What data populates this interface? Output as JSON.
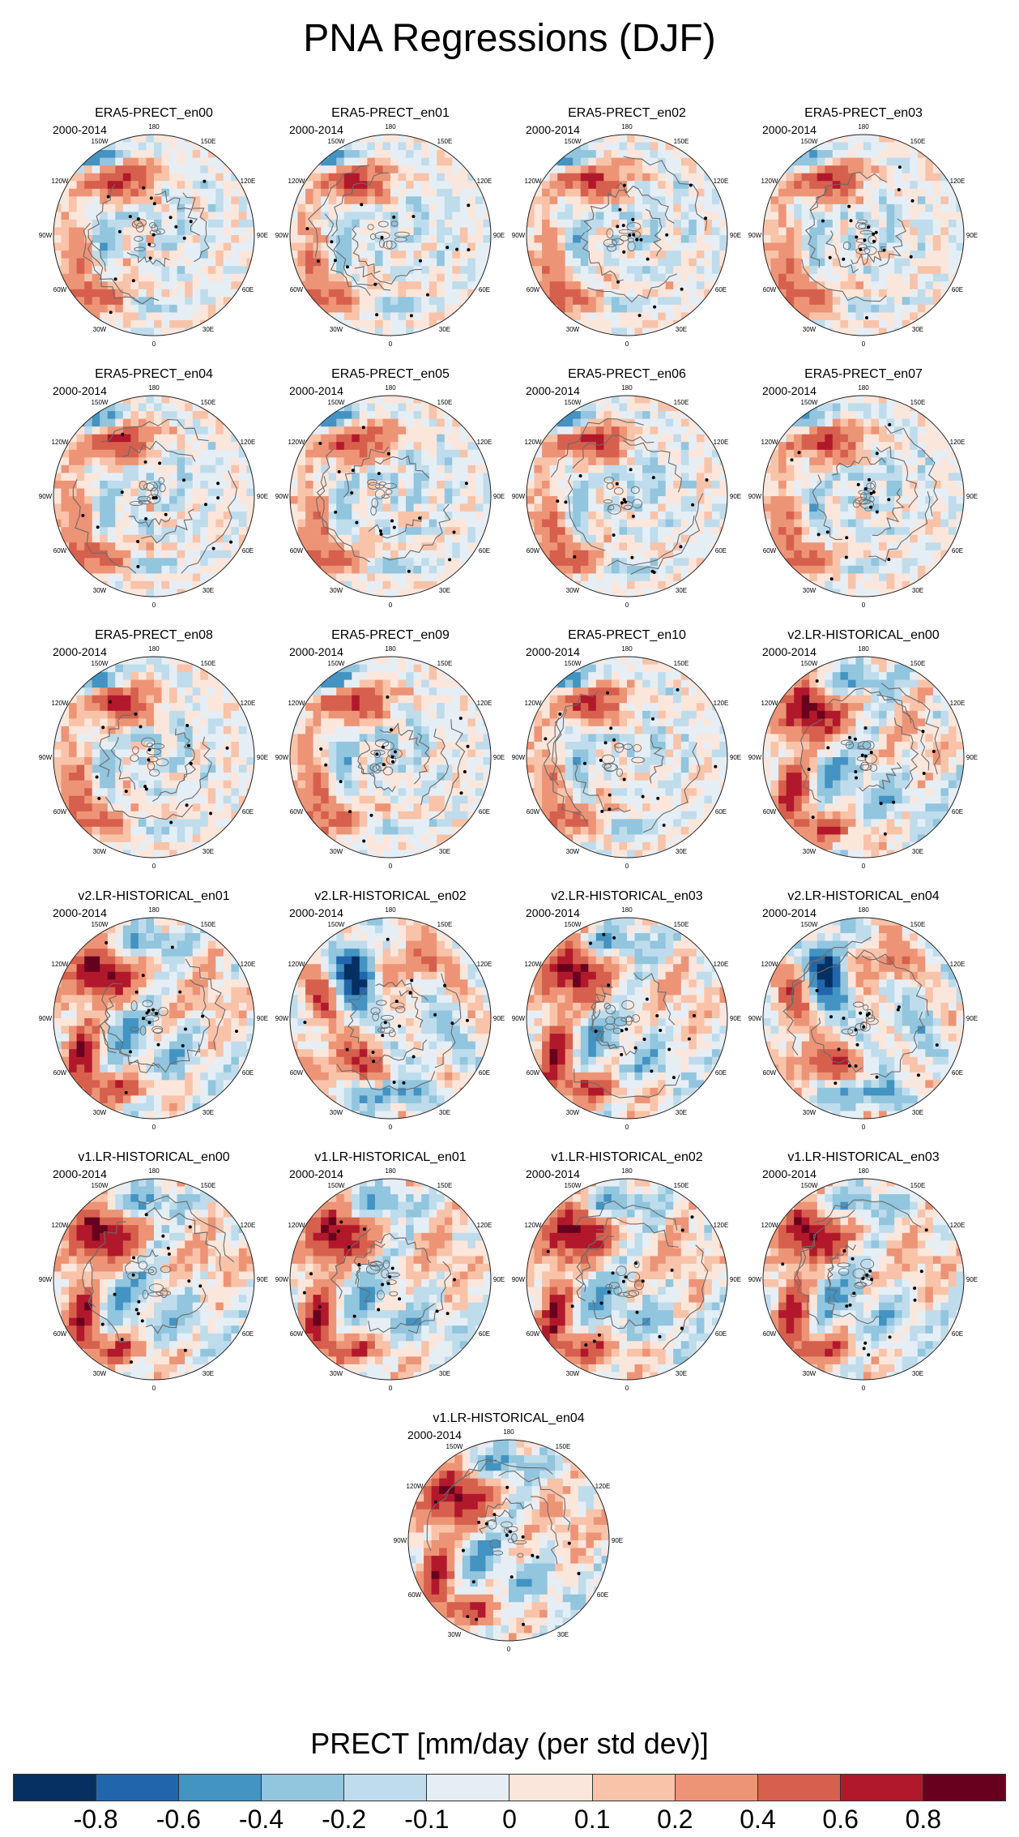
{
  "title": "PNA Regressions (DJF)",
  "period": "2000-2014",
  "lon_labels": [
    "180",
    "150E",
    "120E",
    "90E",
    "60E",
    "30E",
    "0",
    "30W",
    "60W",
    "90W",
    "120W",
    "150W"
  ],
  "colorbar": {
    "title": "PRECT [mm/day (per std dev)]",
    "colors": [
      "#053061",
      "#2166ac",
      "#4393c3",
      "#92c5de",
      "#bfdcec",
      "#e6eef5",
      "#fbe6dc",
      "#f8c3a9",
      "#ed9476",
      "#d6604d",
      "#b2182b",
      "#67001f"
    ],
    "tick_labels": [
      "-0.8",
      "-0.6",
      "-0.4",
      "-0.2",
      "-0.1",
      "0",
      "0.1",
      "0.2",
      "0.4",
      "0.6",
      "0.8"
    ]
  },
  "chart_data": {
    "type": "heatmap",
    "projection": "north polar stereographic",
    "variable": "PRECT",
    "units": "mm/day (per std dev)",
    "levels": [
      -0.8,
      -0.6,
      -0.4,
      -0.2,
      -0.1,
      0,
      0.1,
      0.2,
      0.4,
      0.6,
      0.8
    ],
    "panels": [
      {
        "title": "ERA5-PRECT_en00",
        "period": "2000-2014",
        "pattern": "era"
      },
      {
        "title": "ERA5-PRECT_en01",
        "period": "2000-2014",
        "pattern": "era"
      },
      {
        "title": "ERA5-PRECT_en02",
        "period": "2000-2014",
        "pattern": "era"
      },
      {
        "title": "ERA5-PRECT_en03",
        "period": "2000-2014",
        "pattern": "era"
      },
      {
        "title": "ERA5-PRECT_en04",
        "period": "2000-2014",
        "pattern": "era"
      },
      {
        "title": "ERA5-PRECT_en05",
        "period": "2000-2014",
        "pattern": "era"
      },
      {
        "title": "ERA5-PRECT_en06",
        "period": "2000-2014",
        "pattern": "era"
      },
      {
        "title": "ERA5-PRECT_en07",
        "period": "2000-2014",
        "pattern": "era"
      },
      {
        "title": "ERA5-PRECT_en08",
        "period": "2000-2014",
        "pattern": "era"
      },
      {
        "title": "ERA5-PRECT_en09",
        "period": "2000-2014",
        "pattern": "era"
      },
      {
        "title": "ERA5-PRECT_en10",
        "period": "2000-2014",
        "pattern": "era"
      },
      {
        "title": "v2.LR-HISTORICAL_en00",
        "period": "2000-2014",
        "pattern": "model"
      },
      {
        "title": "v2.LR-HISTORICAL_en01",
        "period": "2000-2014",
        "pattern": "model"
      },
      {
        "title": "v2.LR-HISTORICAL_en02",
        "period": "2000-2014",
        "pattern": "model-b"
      },
      {
        "title": "v2.LR-HISTORICAL_en03",
        "period": "2000-2014",
        "pattern": "model"
      },
      {
        "title": "v2.LR-HISTORICAL_en04",
        "period": "2000-2014",
        "pattern": "model-b"
      },
      {
        "title": "v1.LR-HISTORICAL_en00",
        "period": "2000-2014",
        "pattern": "model"
      },
      {
        "title": "v1.LR-HISTORICAL_en01",
        "period": "2000-2014",
        "pattern": "model"
      },
      {
        "title": "v1.LR-HISTORICAL_en02",
        "period": "2000-2014",
        "pattern": "model"
      },
      {
        "title": "v1.LR-HISTORICAL_en03",
        "period": "2000-2014",
        "pattern": "model"
      },
      {
        "title": "v1.LR-HISTORICAL_en04",
        "period": "2000-2014",
        "pattern": "model"
      }
    ]
  }
}
